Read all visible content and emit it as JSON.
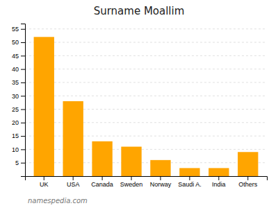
{
  "chart_data": {
    "type": "bar",
    "title": "Surname Moallim",
    "categories": [
      "UK",
      "USA",
      "Canada",
      "Sweden",
      "Norway",
      "Saudi A.",
      "India",
      "Others"
    ],
    "values": [
      52,
      28,
      13,
      11,
      6,
      3,
      3,
      9
    ],
    "color": "#FFA500",
    "ylim": [
      0,
      57
    ],
    "yticks": [
      5,
      10,
      15,
      20,
      25,
      30,
      35,
      40,
      45,
      50,
      55
    ],
    "grid": true,
    "annotations": [
      "namespedia.com"
    ]
  }
}
